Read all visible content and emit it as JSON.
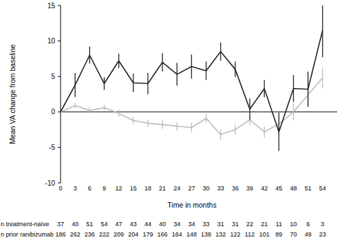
{
  "chart_data": {
    "type": "line",
    "x_label": "Time in months",
    "y_label": "Mean VA change from baseline",
    "x": [
      0,
      3,
      6,
      9,
      12,
      15,
      18,
      21,
      24,
      27,
      30,
      33,
      36,
      39,
      42,
      45,
      48,
      51,
      54
    ],
    "xlim": [
      0,
      57
    ],
    "xticks": [
      0,
      3,
      6,
      9,
      12,
      15,
      18,
      21,
      24,
      27,
      30,
      33,
      36,
      39,
      42,
      45,
      48,
      51,
      54
    ],
    "ylim": [
      -10,
      15
    ],
    "yticks": [
      -10,
      -5,
      0,
      5,
      10,
      15
    ],
    "grid": false,
    "series": [
      {
        "name": "n treatment-naïve",
        "color": "#222222",
        "values": [
          0,
          3.8,
          8.0,
          4.0,
          7.2,
          4.1,
          4.0,
          7.0,
          5.3,
          6.4,
          5.8,
          8.5,
          6.0,
          0.4,
          3.3,
          -2.8,
          3.3,
          3.2,
          11.5
        ],
        "errors": [
          0,
          1.7,
          1.2,
          0.9,
          1.0,
          1.3,
          1.5,
          1.3,
          1.6,
          1.7,
          1.3,
          1.3,
          1.1,
          1.5,
          1.2,
          2.7,
          1.9,
          2.5,
          3.8
        ],
        "n": [
          37,
          40,
          51,
          54,
          47,
          43,
          44,
          40,
          34,
          34,
          33,
          31,
          31,
          22,
          21,
          11,
          10,
          6,
          3
        ]
      },
      {
        "name": "n prior ranibizumab",
        "color": "#bbbbbb",
        "values": [
          0,
          0.9,
          0.2,
          0.6,
          -0.2,
          -1.2,
          -1.6,
          -1.8,
          -2.0,
          -2.2,
          -0.9,
          -3.2,
          -2.5,
          -1.1,
          -2.8,
          -1.7,
          0.0,
          2.4,
          4.8
        ],
        "errors": [
          0,
          0.4,
          0.4,
          0.4,
          0.5,
          0.5,
          0.5,
          0.6,
          0.6,
          0.7,
          0.6,
          0.7,
          0.7,
          0.7,
          0.8,
          1.4,
          1.2,
          1.4,
          1.5
        ],
        "n": [
          186,
          262,
          236,
          222,
          209,
          204,
          179,
          166,
          164,
          148,
          138,
          132,
          122,
          112,
          101,
          89,
          70,
          49,
          23
        ]
      }
    ]
  }
}
